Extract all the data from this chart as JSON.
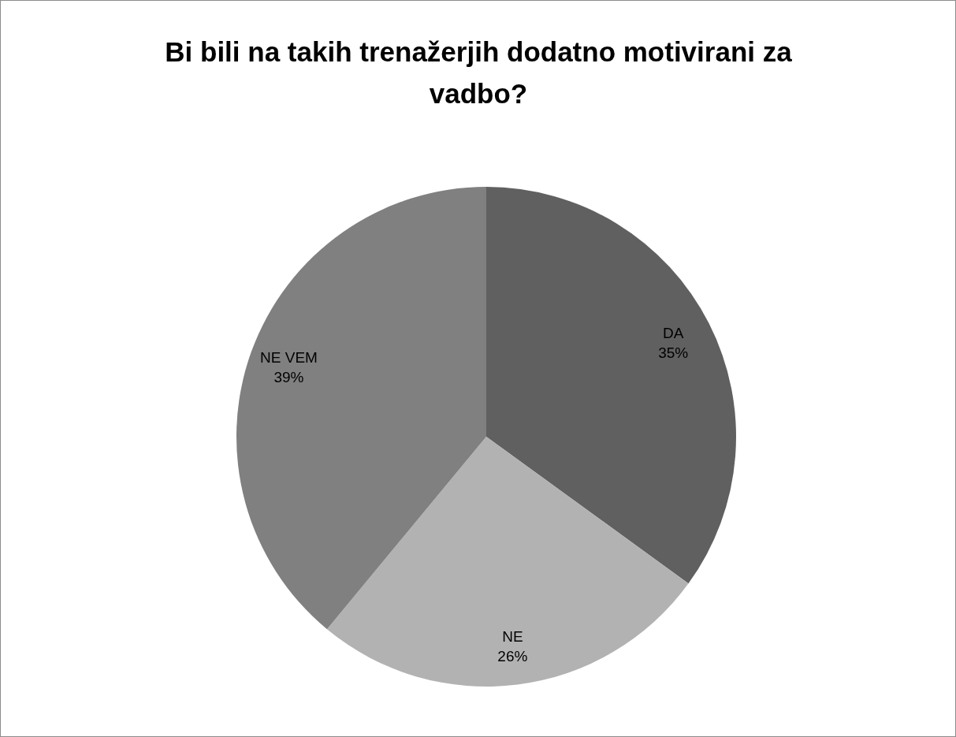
{
  "chart_data": {
    "type": "pie",
    "title": "Bi bili na takih trenažerjih dodatno motivirani za vadbo?",
    "categories": [
      "DA",
      "NE",
      "NE VEM"
    ],
    "values": [
      35,
      26,
      39
    ],
    "value_labels": [
      "35%",
      "26%",
      "39%"
    ],
    "colors": [
      "#606060",
      "#b2b2b2",
      "#808080"
    ]
  }
}
